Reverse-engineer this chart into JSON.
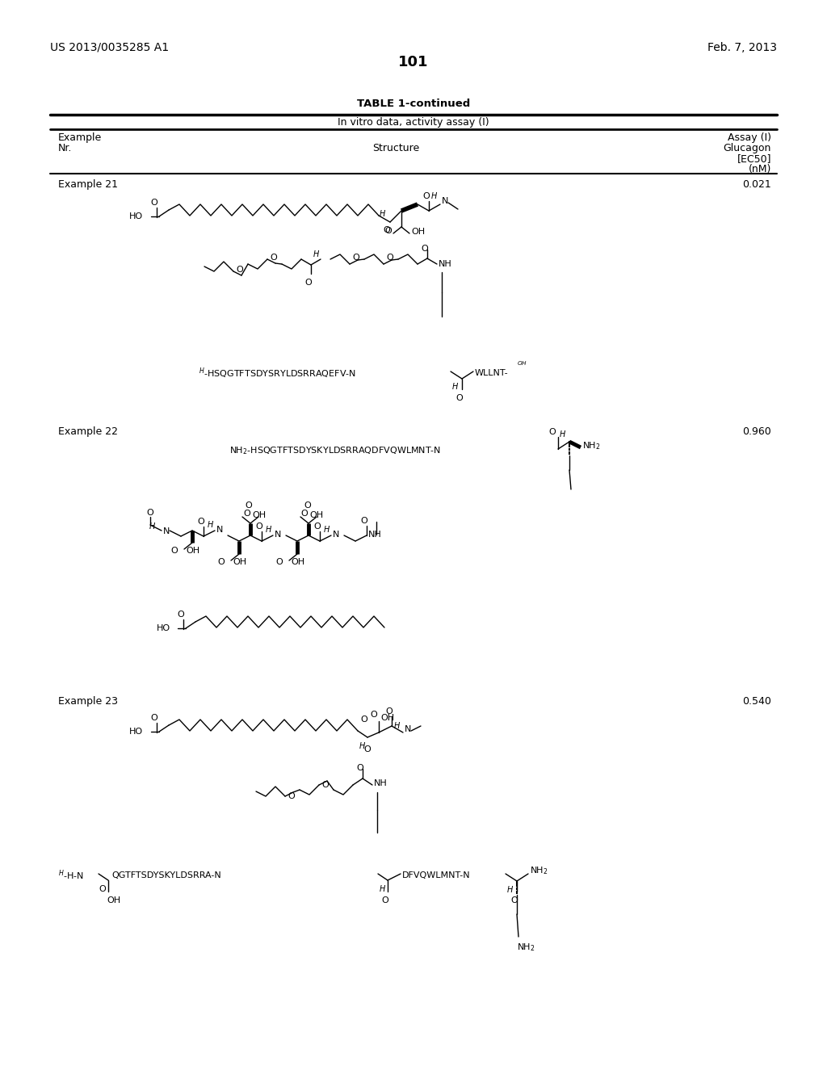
{
  "title_left": "US 2013/0035285 A1",
  "title_right": "Feb. 7, 2013",
  "page_number": "101",
  "table_title": "TABLE 1-continued",
  "table_subtitle": "In vitro data, activity assay (I)",
  "col1_h1": "Example",
  "col1_h2": "Nr.",
  "col2_h": "Structure",
  "col3_h1": "Assay (I)",
  "col3_h2": "Glucagon",
  "col3_h3": "[EC50]",
  "col3_h4": "(nM)",
  "ex21_label": "Example 21",
  "ex21_val": "0.021",
  "ex22_label": "Example 22",
  "ex22_val": "0.960",
  "ex23_label": "Example 23",
  "ex23_val": "0.540",
  "bg": "#ffffff",
  "fg": "#000000"
}
